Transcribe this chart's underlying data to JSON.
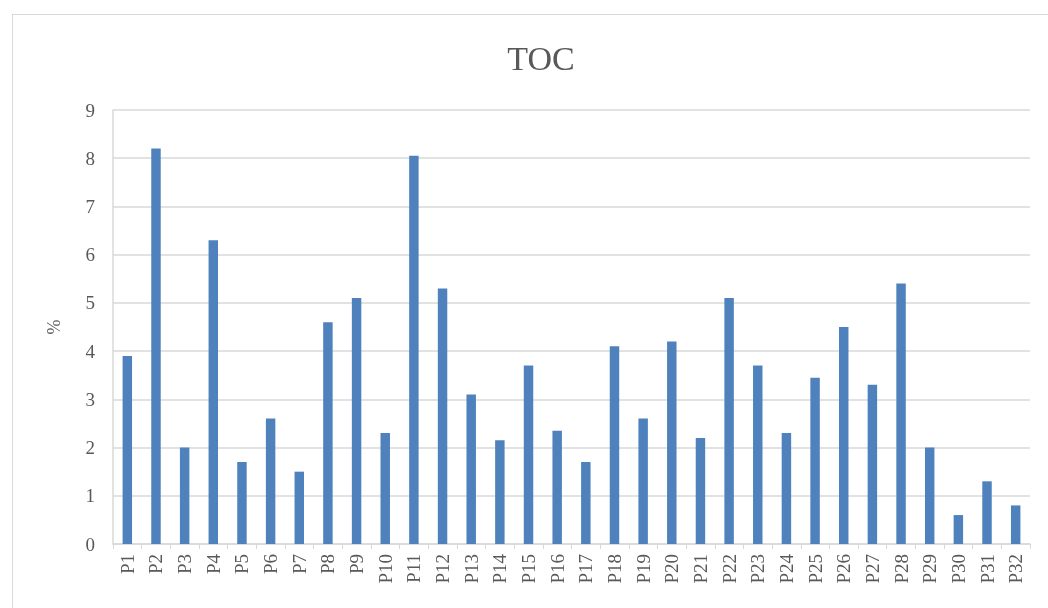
{
  "chart_data": {
    "type": "bar",
    "title": "TOC",
    "ylabel": "%",
    "categories": [
      "P1",
      "P2",
      "P3",
      "P4",
      "P5",
      "P6",
      "P7",
      "P8",
      "P9",
      "P10",
      "P11",
      "P12",
      "P13",
      "P14",
      "P15",
      "P16",
      "P17",
      "P18",
      "P19",
      "P20",
      "P21",
      "P22",
      "P23",
      "P24",
      "P25",
      "P26",
      "P27",
      "P28",
      "P29",
      "P30",
      "P31",
      "P32"
    ],
    "values": [
      3.9,
      8.2,
      2.0,
      6.3,
      1.7,
      2.6,
      1.5,
      4.6,
      5.1,
      2.3,
      8.05,
      5.3,
      3.1,
      2.15,
      3.7,
      2.35,
      1.7,
      4.1,
      2.6,
      4.2,
      2.2,
      5.1,
      3.7,
      2.3,
      3.45,
      4.5,
      3.3,
      5.4,
      2.0,
      0.6,
      1.3,
      0.8
    ],
    "color": "#4f81bd",
    "ylim": [
      0,
      9
    ],
    "yticks": [
      0,
      1,
      2,
      3,
      4,
      5,
      6,
      7,
      8,
      9
    ],
    "grid": "y"
  }
}
